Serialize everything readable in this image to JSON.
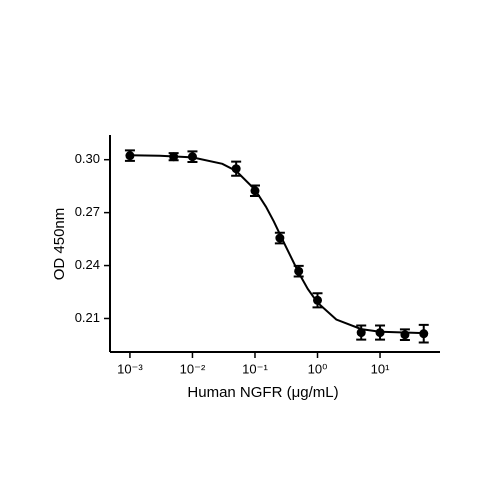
{
  "chart_data": {
    "type": "scatter",
    "x_label": "Human NGFR (μg/mL)",
    "y_label": "OD 450nm",
    "x_scale": "log",
    "color": "#000000",
    "x": [
      0.001,
      0.005,
      0.01,
      0.05,
      0.1,
      0.25,
      0.5,
      1,
      5,
      10,
      25,
      50
    ],
    "values": [
      0.3023,
      0.3017,
      0.3017,
      0.2949,
      0.2824,
      0.2556,
      0.2368,
      0.2203,
      0.202,
      0.202,
      0.2008,
      0.2014
    ],
    "errors": [
      0.003,
      0.002,
      0.003,
      0.004,
      0.003,
      0.003,
      0.003,
      0.004,
      0.004,
      0.004,
      0.003,
      0.005
    ],
    "curve": {
      "x": [
        0.001,
        0.003,
        0.01,
        0.03,
        0.05,
        0.1,
        0.15,
        0.2,
        0.3,
        0.5,
        0.7,
        1,
        2,
        5,
        10,
        50
      ],
      "y": [
        0.3025,
        0.3022,
        0.3013,
        0.2977,
        0.2936,
        0.283,
        0.2733,
        0.265,
        0.252,
        0.2359,
        0.2267,
        0.219,
        0.2094,
        0.204,
        0.2025,
        0.2017
      ]
    },
    "xlim": [
      0.00048,
      91
    ],
    "ylim": [
      0.191,
      0.314
    ],
    "xticks": [
      {
        "value": 0.001,
        "label": "10⁻³"
      },
      {
        "value": 0.01,
        "label": "10⁻²"
      },
      {
        "value": 0.1,
        "label": "10⁻¹"
      },
      {
        "value": 1,
        "label": "10⁰"
      },
      {
        "value": 10,
        "label": "10¹"
      }
    ],
    "yticks": [
      {
        "value": 0.3,
        "label": "0.30"
      },
      0.27,
      0.24,
      0.21
    ]
  }
}
